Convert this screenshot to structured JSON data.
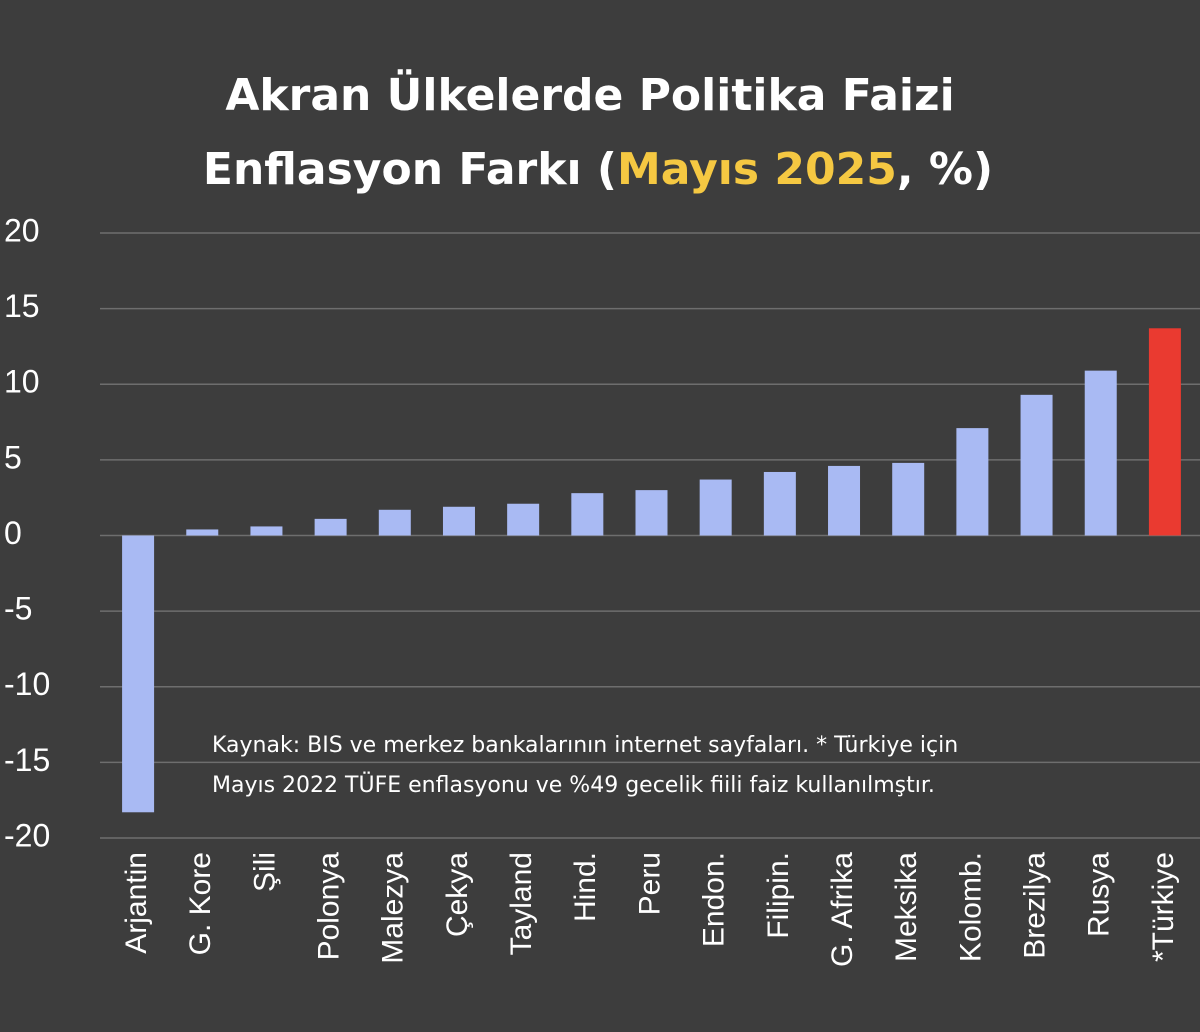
{
  "chart_data": {
    "type": "bar",
    "title": [
      "Akran Ülkelerde Politika Faizi",
      "Enflasyon Farkı (",
      "Mayıs 2025",
      ", %)"
    ],
    "title_highlight_color": "#f5c842",
    "categories": [
      "Arjantin",
      "G. Kore",
      "Şili",
      "Polonya",
      "Malezya",
      "Çekya",
      "Tayland",
      "Hind.",
      "Peru",
      "Endon.",
      "Filipin.",
      "G. Afrika",
      "Meksika",
      "Kolomb.",
      "Brezilya",
      "Rusya",
      "*Türkiye"
    ],
    "values": [
      -18.3,
      0.4,
      0.6,
      1.1,
      1.7,
      1.9,
      2.1,
      2.8,
      3.0,
      3.7,
      4.2,
      4.6,
      4.8,
      7.1,
      9.3,
      10.9,
      13.7
    ],
    "colors": [
      "#a9baf3",
      "#a9baf3",
      "#a9baf3",
      "#a9baf3",
      "#a9baf3",
      "#a9baf3",
      "#a9baf3",
      "#a9baf3",
      "#a9baf3",
      "#a9baf3",
      "#a9baf3",
      "#a9baf3",
      "#a9baf3",
      "#a9baf3",
      "#a9baf3",
      "#a9baf3",
      "#ea3a30"
    ],
    "ylim": [
      -20,
      20
    ],
    "yticks": [
      -20,
      -15,
      -10,
      -5,
      0,
      5,
      10,
      15,
      20
    ],
    "grid": true,
    "annotations": [
      "Kaynak: BIS ve merkez bankalarının internet sayfaları. * Türkiye için",
      "Mayıs 2022 TÜFE enflasyonu ve %49 gecelik fiili faiz kullanılmştır."
    ]
  }
}
